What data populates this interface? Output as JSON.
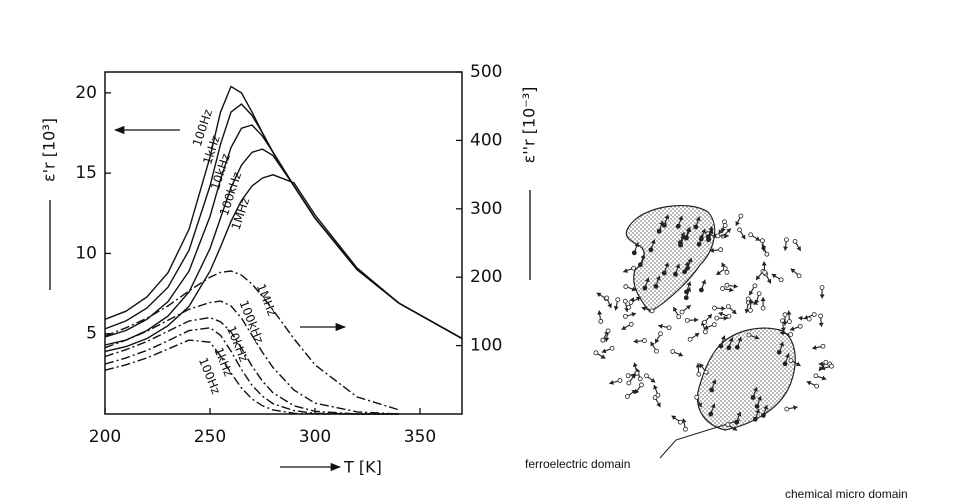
{
  "chart_data": {
    "type": "line",
    "ylabel": "ε'r [10³]",
    "y2label": "ε''r [10⁻³]",
    "xlabel": "T [K]",
    "x": [
      200,
      210,
      220,
      230,
      240,
      250,
      255,
      260,
      265,
      270,
      275,
      280,
      290,
      300,
      320,
      340,
      370
    ],
    "xlim": [
      200,
      370
    ],
    "xticks": [
      200,
      250,
      300,
      350
    ],
    "ylim": [
      0,
      21.3
    ],
    "yticks": [
      5,
      10,
      15,
      20
    ],
    "y2lim": [
      0,
      500
    ],
    "y2ticks": [
      100,
      200,
      300,
      400,
      500
    ],
    "series": [
      {
        "name": "100Hz",
        "color": "#111111",
        "values": [
          5.9,
          6.4,
          7.3,
          8.8,
          11.5,
          16,
          18.8,
          20.4,
          20.0,
          18.8,
          17.5,
          16.3,
          14.2,
          12.2,
          9.0,
          6.9,
          4.7
        ]
      },
      {
        "name": "1kHz",
        "color": "#111111",
        "values": [
          5.3,
          5.8,
          6.6,
          7.9,
          10.2,
          14.2,
          16.8,
          18.8,
          19.3,
          18.6,
          17.5,
          16.3,
          14.2,
          12.2,
          9.0,
          6.9,
          4.7
        ]
      },
      {
        "name": "10kHz",
        "color": "#111111",
        "values": [
          4.8,
          5.2,
          5.9,
          7.0,
          8.9,
          12.3,
          14.6,
          16.6,
          17.8,
          18.0,
          17.3,
          16.3,
          14.2,
          12.2,
          9.0,
          6.9,
          4.7
        ]
      },
      {
        "name": "100kHz",
        "color": "#111111",
        "values": [
          4.3,
          4.6,
          5.2,
          6.1,
          7.6,
          10.3,
          12.2,
          14.1,
          15.5,
          16.3,
          16.5,
          16.1,
          14.2,
          12.2,
          9.0,
          6.9,
          4.7
        ]
      },
      {
        "name": "1MHz",
        "color": "#111111",
        "values": [
          3.9,
          4.2,
          4.7,
          5.5,
          6.7,
          8.9,
          10.4,
          12.0,
          13.3,
          14.2,
          14.7,
          14.9,
          14.4,
          12.4,
          9.1,
          6.9,
          4.7
        ]
      },
      {
        "name": "100Hz",
        "color": "#111111",
        "axis": "y2",
        "values": [
          64,
          72,
          82,
          95,
          108,
          105,
          85,
          60,
          38,
          22,
          12,
          6,
          1,
          0,
          0,
          0,
          null
        ]
      },
      {
        "name": "1kHz",
        "color": "#111111",
        "axis": "y2",
        "values": [
          73,
          82,
          93,
          107,
          122,
          126,
          115,
          92,
          65,
          42,
          26,
          15,
          5,
          1,
          0,
          0,
          null
        ]
      },
      {
        "name": "10kHz",
        "color": "#111111",
        "axis": "y2",
        "values": [
          84,
          94,
          106,
          121,
          136,
          141,
          135,
          120,
          96,
          70,
          48,
          31,
          12,
          4,
          0,
          0,
          null
        ]
      },
      {
        "name": "100kHz",
        "color": "#111111",
        "axis": "y2",
        "values": [
          97,
          108,
          121,
          137,
          153,
          163,
          165,
          158,
          140,
          115,
          90,
          68,
          35,
          16,
          3,
          0,
          null
        ]
      },
      {
        "name": "1MHz",
        "color": "#111111",
        "axis": "y2",
        "values": [
          114,
          126,
          140,
          158,
          180,
          200,
          207,
          209,
          203,
          190,
          172,
          152,
          110,
          72,
          25,
          6,
          null
        ]
      }
    ],
    "annotations": [
      "ferroelectric domain",
      "chemical micro domain"
    ]
  }
}
